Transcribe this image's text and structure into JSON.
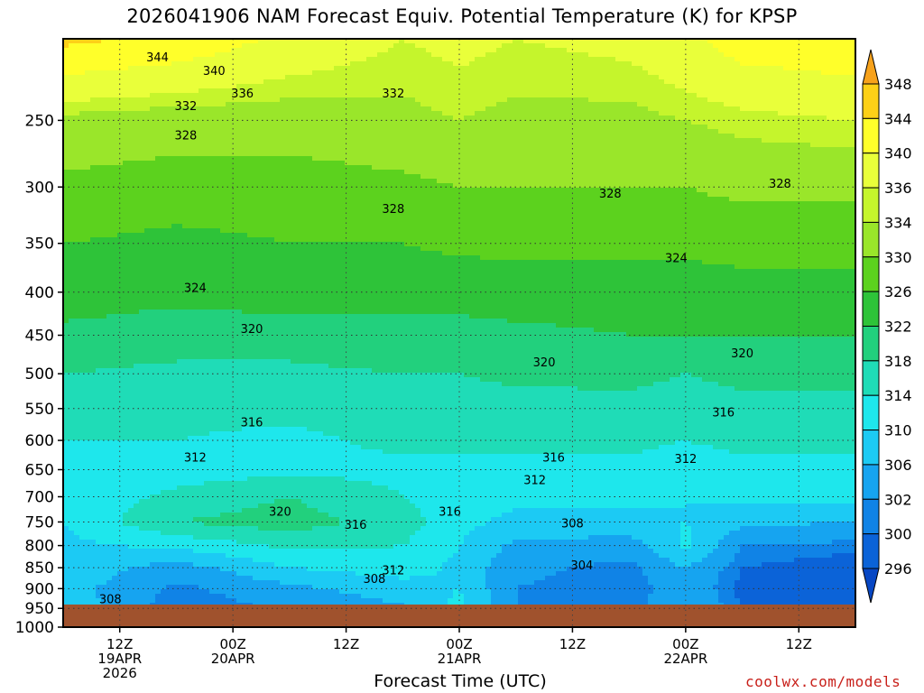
{
  "chart_data": {
    "type": "heatmap",
    "title": "2026041906 NAM Forecast Equiv. Potential Temperature (K) for KPSP",
    "xlabel": "Forecast Time (UTC)",
    "ylabel": "",
    "y_scale": "log-pressure",
    "ylim": [
      1000,
      200
    ],
    "y_ticks": [
      250,
      300,
      350,
      400,
      450,
      500,
      550,
      600,
      650,
      700,
      750,
      800,
      850,
      900,
      950,
      1000
    ],
    "x_ticks": [
      {
        "hour": 6,
        "lines": [
          "12Z",
          "19APR",
          "2026"
        ]
      },
      {
        "hour": 18,
        "lines": [
          "00Z",
          "20APR"
        ]
      },
      {
        "hour": 30,
        "lines": [
          "12Z"
        ]
      },
      {
        "hour": 42,
        "lines": [
          "00Z",
          "21APR"
        ]
      },
      {
        "hour": 54,
        "lines": [
          "12Z"
        ]
      },
      {
        "hour": 66,
        "lines": [
          "00Z",
          "22APR"
        ]
      },
      {
        "hour": 78,
        "lines": [
          "12Z"
        ]
      }
    ],
    "xlim": [
      0,
      84
    ],
    "grid": true,
    "surface_pressure": 940,
    "surface_color": "#a0522d",
    "colorbar": {
      "labels": [
        348,
        344,
        340,
        336,
        334,
        330,
        326,
        322,
        318,
        314,
        310,
        306,
        302,
        300,
        296
      ],
      "colors": [
        "#f7a21b",
        "#fdd017",
        "#ffff2a",
        "#e9ff3a",
        "#c5f52c",
        "#9ae62a",
        "#5cd21e",
        "#2ec339",
        "#22d07d",
        "#1fdcb7",
        "#1ee7ec",
        "#1ccaf4",
        "#16a4f0",
        "#1083e6",
        "#0b63d8",
        "#0747c4"
      ]
    },
    "theta_e_field": {
      "pressure_levels": [
        200,
        250,
        300,
        350,
        400,
        450,
        500,
        550,
        600,
        650,
        700,
        750,
        800,
        850,
        900,
        940
      ],
      "columns": [
        {
          "hour": 0,
          "values": [
            345,
            333,
            329,
            326,
            324,
            321,
            318,
            316,
            314,
            313,
            311,
            310,
            309,
            309,
            308,
            309
          ]
        },
        {
          "hour": 12,
          "values": [
            343,
            332,
            328,
            325,
            323,
            320,
            317,
            315,
            314,
            312,
            315,
            318,
            311,
            304,
            301,
            300
          ]
        },
        {
          "hour": 24,
          "values": [
            339,
            332,
            328,
            326,
            324,
            320,
            317,
            315,
            313,
            313,
            318,
            320,
            315,
            310,
            305,
            303
          ]
        },
        {
          "hour": 36,
          "values": [
            336,
            333,
            329,
            326,
            323,
            321,
            318,
            316,
            315,
            313,
            314,
            316,
            314,
            312,
            308,
            306
          ]
        },
        {
          "hour": 42,
          "values": [
            337,
            334,
            330,
            327,
            323,
            321,
            318,
            316,
            315,
            313,
            312,
            311,
            310,
            309,
            310,
            311
          ]
        },
        {
          "hour": 48,
          "values": [
            336,
            333,
            330,
            327,
            324,
            321,
            319,
            316,
            315,
            313,
            311,
            309,
            305,
            303,
            302,
            302
          ]
        },
        {
          "hour": 60,
          "values": [
            337,
            333,
            330,
            327,
            324,
            322,
            319,
            317,
            315,
            313,
            311,
            309,
            304,
            301,
            300,
            300
          ]
        },
        {
          "hour": 66,
          "values": [
            339,
            334,
            330,
            327,
            324,
            322,
            318,
            316,
            314,
            312,
            310,
            310,
            311,
            306,
            305,
            306
          ]
        },
        {
          "hour": 72,
          "values": [
            342,
            335,
            331,
            327,
            325,
            322,
            319,
            317,
            315,
            313,
            311,
            307,
            302,
            300,
            299,
            300
          ]
        },
        {
          "hour": 84,
          "values": [
            343,
            336,
            331,
            327,
            325,
            322,
            319,
            317,
            315,
            313,
            311,
            306,
            301,
            298,
            297,
            299
          ]
        }
      ]
    },
    "contour_labels": [
      {
        "text": "344",
        "hour": 10,
        "p": 210
      },
      {
        "text": "340",
        "hour": 16,
        "p": 218
      },
      {
        "text": "336",
        "hour": 19,
        "p": 232
      },
      {
        "text": "332",
        "hour": 13,
        "p": 240
      },
      {
        "text": "332",
        "hour": 35,
        "p": 232
      },
      {
        "text": "328",
        "hour": 13,
        "p": 260
      },
      {
        "text": "328",
        "hour": 35,
        "p": 318
      },
      {
        "text": "328",
        "hour": 58,
        "p": 305
      },
      {
        "text": "328",
        "hour": 76,
        "p": 297
      },
      {
        "text": "324",
        "hour": 14,
        "p": 395
      },
      {
        "text": "324",
        "hour": 65,
        "p": 364
      },
      {
        "text": "320",
        "hour": 20,
        "p": 442
      },
      {
        "text": "320",
        "hour": 51,
        "p": 484
      },
      {
        "text": "320",
        "hour": 72,
        "p": 472
      },
      {
        "text": "316",
        "hour": 20,
        "p": 570
      },
      {
        "text": "316",
        "hour": 52,
        "p": 628
      },
      {
        "text": "316",
        "hour": 70,
        "p": 555
      },
      {
        "text": "316",
        "hour": 31,
        "p": 755
      },
      {
        "text": "316",
        "hour": 41,
        "p": 728
      },
      {
        "text": "312",
        "hour": 14,
        "p": 628
      },
      {
        "text": "312",
        "hour": 50,
        "p": 668
      },
      {
        "text": "312",
        "hour": 66,
        "p": 630
      },
      {
        "text": "312",
        "hour": 35,
        "p": 855
      },
      {
        "text": "320",
        "hour": 23,
        "p": 728
      },
      {
        "text": "308",
        "hour": 54,
        "p": 752
      },
      {
        "text": "308",
        "hour": 33,
        "p": 875
      },
      {
        "text": "304",
        "hour": 55,
        "p": 843
      },
      {
        "text": "308",
        "hour": 5,
        "p": 925
      }
    ]
  },
  "credit": "coolwx.com/models"
}
